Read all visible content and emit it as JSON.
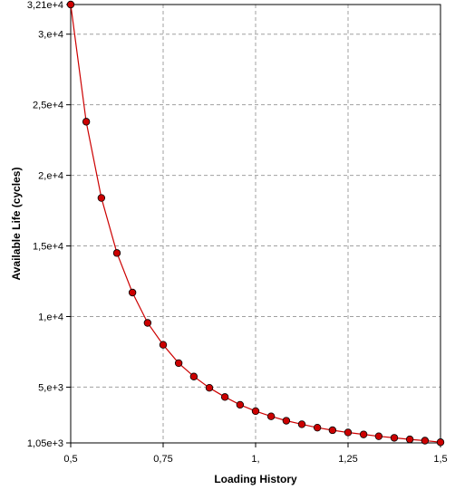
{
  "chart_data": {
    "type": "line",
    "title": "",
    "xlabel": "Loading History",
    "ylabel": "Available Life (cycles)",
    "xlim": [
      0.5,
      1.5
    ],
    "ylim": [
      1050,
      32100
    ],
    "grid": true,
    "x_ticks": [
      {
        "value": 0.5,
        "label": "0,5"
      },
      {
        "value": 0.75,
        "label": "0,75"
      },
      {
        "value": 1.0,
        "label": "1,"
      },
      {
        "value": 1.25,
        "label": "1,25"
      },
      {
        "value": 1.5,
        "label": "1,5"
      }
    ],
    "y_ticks": [
      {
        "value": 1050,
        "label": "1,05e+3"
      },
      {
        "value": 5000,
        "label": "5,e+3"
      },
      {
        "value": 10000,
        "label": "1,e+4"
      },
      {
        "value": 15000,
        "label": "1,5e+4"
      },
      {
        "value": 20000,
        "label": "2,e+4"
      },
      {
        "value": 25000,
        "label": "2,5e+4"
      },
      {
        "value": 30000,
        "label": "3,e+4"
      },
      {
        "value": 32100,
        "label": "3,21e+4"
      }
    ],
    "series": [
      {
        "color": "#cc0000",
        "marker_color": "#cc0000",
        "x": [
          0.5,
          0.542,
          0.583,
          0.625,
          0.667,
          0.708,
          0.75,
          0.792,
          0.833,
          0.875,
          0.917,
          0.958,
          1.0,
          1.042,
          1.083,
          1.125,
          1.167,
          1.208,
          1.25,
          1.292,
          1.333,
          1.375,
          1.417,
          1.458,
          1.5
        ],
        "y": [
          32100,
          23800,
          18400,
          14500,
          11700,
          9550,
          8000,
          6700,
          5750,
          4950,
          4300,
          3750,
          3300,
          2930,
          2620,
          2370,
          2130,
          1950,
          1790,
          1650,
          1520,
          1410,
          1300,
          1210,
          1100
        ]
      }
    ]
  }
}
